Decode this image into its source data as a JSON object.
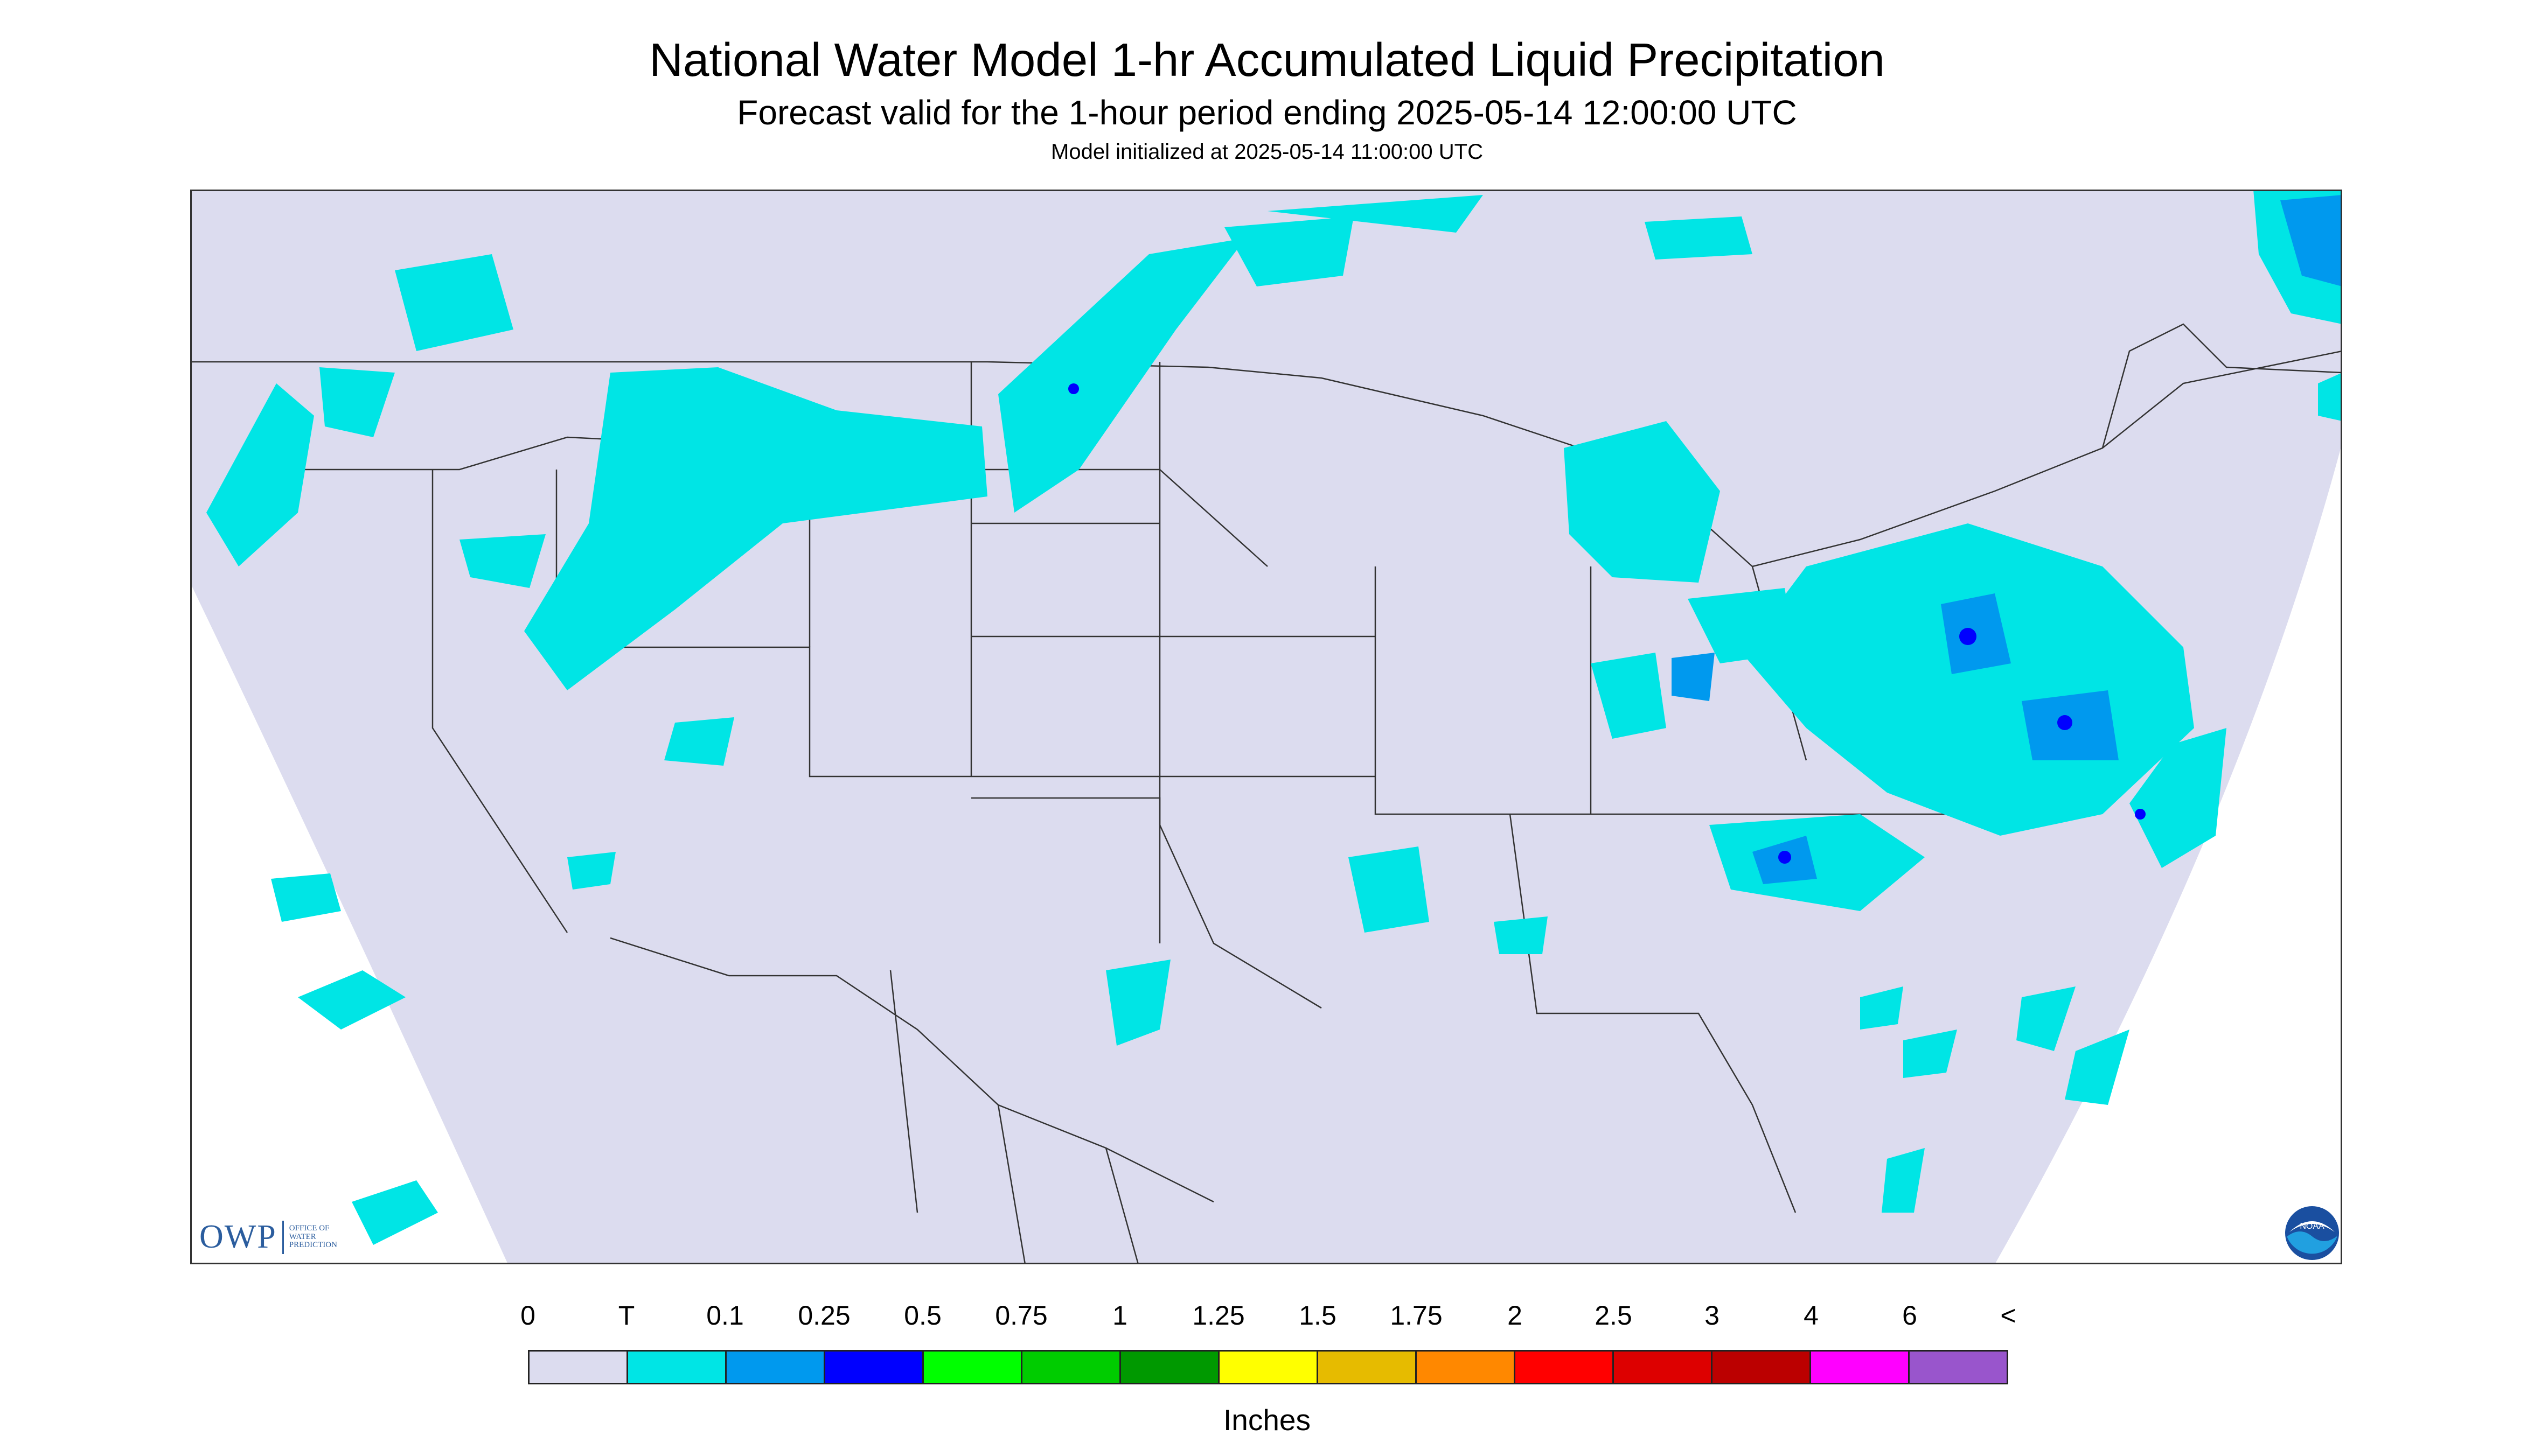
{
  "header": {
    "title": "National Water Model 1-hr Accumulated Liquid Precipitation",
    "subtitle": "Forecast valid for the 1-hour period ending 2025-05-14 12:00:00 UTC",
    "init_text": "Model initialized at 2025-05-14 11:00:00 UTC"
  },
  "map": {
    "background_color": "#dcdcef",
    "outside_color": "#ffffff",
    "border_color": "#333333",
    "region": "Contiguous United States with parts of Canada, Mexico and surrounding waters"
  },
  "precip_areas": [
    {
      "name": "pacific-northwest-showers",
      "category": "T",
      "color": "#00e5e5"
    },
    {
      "name": "northern-rockies-showers",
      "category": "T",
      "color": "#00e5e5"
    },
    {
      "name": "northern-plains-band",
      "category": "T",
      "color": "#00e5e5"
    },
    {
      "name": "great-lakes-showers",
      "category": "T",
      "color": "#00e5e5"
    },
    {
      "name": "mid-atlantic-northeast-rain",
      "category": "0.1",
      "color": "#0099ee"
    },
    {
      "name": "mid-atlantic-heavy-cores",
      "category": "0.25",
      "color": "#0000ff"
    },
    {
      "name": "southeast-band",
      "category": "0.1",
      "color": "#0099ee"
    },
    {
      "name": "atlantic-offshore-cells",
      "category": "0.1",
      "color": "#0099ee"
    },
    {
      "name": "baja-eastern-pacific",
      "category": "T",
      "color": "#00e5e5"
    }
  ],
  "legend": {
    "labels": [
      "0",
      "T",
      "0.1",
      "0.25",
      "0.5",
      "0.75",
      "1",
      "1.25",
      "1.5",
      "1.75",
      "2",
      "2.5",
      "3",
      "4",
      "6",
      "<"
    ],
    "colors": [
      "#dcdcef",
      "#00e5e5",
      "#0099ee",
      "#0000ff",
      "#00ff00",
      "#00cc00",
      "#009900",
      "#ffff00",
      "#e6bb00",
      "#ff8800",
      "#ff0000",
      "#dd0000",
      "#bb0000",
      "#ff00ff",
      "#9955cc"
    ],
    "units": "Inches"
  },
  "logos": {
    "owp_mark": "OWP",
    "owp_text": [
      "Office of",
      "Water",
      "Prediction"
    ],
    "noaa_text": "NOAA"
  }
}
